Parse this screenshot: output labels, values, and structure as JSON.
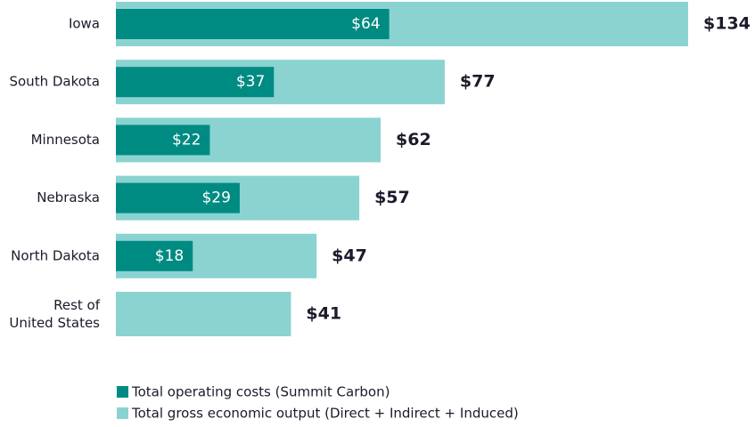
{
  "chart_data": {
    "type": "bar",
    "orientation": "horizontal",
    "categories": [
      "Iowa",
      "South Dakota",
      "Minnesota",
      "Nebraska",
      "North Dakota",
      "Rest of\nUnited States"
    ],
    "series": [
      {
        "name": "Total operating costs (Summit Carbon)",
        "color": "#008b82",
        "values": [
          64,
          37,
          22,
          29,
          18,
          null
        ],
        "value_labels": [
          "$64",
          "$37",
          "$22",
          "$29",
          "$18",
          null
        ]
      },
      {
        "name": "Total gross economic output (Direct + Indirect + Induced)",
        "color": "#8ad3d1",
        "values": [
          134,
          77,
          62,
          57,
          47,
          41
        ],
        "value_labels": [
          "$134",
          "$77",
          "$62",
          "$57",
          "$47",
          "$41"
        ]
      }
    ]
  }
}
